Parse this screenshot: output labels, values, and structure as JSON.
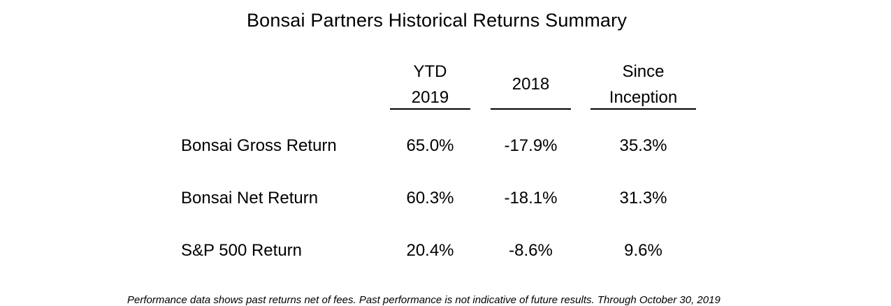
{
  "title": "Bonsai Partners Historical Returns Summary",
  "columns": [
    {
      "line1": "YTD",
      "line2": "2019"
    },
    {
      "line1": "2018",
      "line2": ""
    },
    {
      "line1": "Since",
      "line2": "Inception"
    }
  ],
  "rows": [
    {
      "label": "Bonsai Gross Return",
      "values": [
        "65.0%",
        "-17.9%",
        "35.3%"
      ]
    },
    {
      "label": "Bonsai Net Return",
      "values": [
        "60.3%",
        "-18.1%",
        "31.3%"
      ]
    },
    {
      "label": "S&P 500 Return",
      "values": [
        "20.4%",
        "-8.6%",
        "9.6%"
      ]
    }
  ],
  "footnote": "Performance data shows past returns net of fees. Past performance is not indicative of future results. Through October 30, 2019"
}
